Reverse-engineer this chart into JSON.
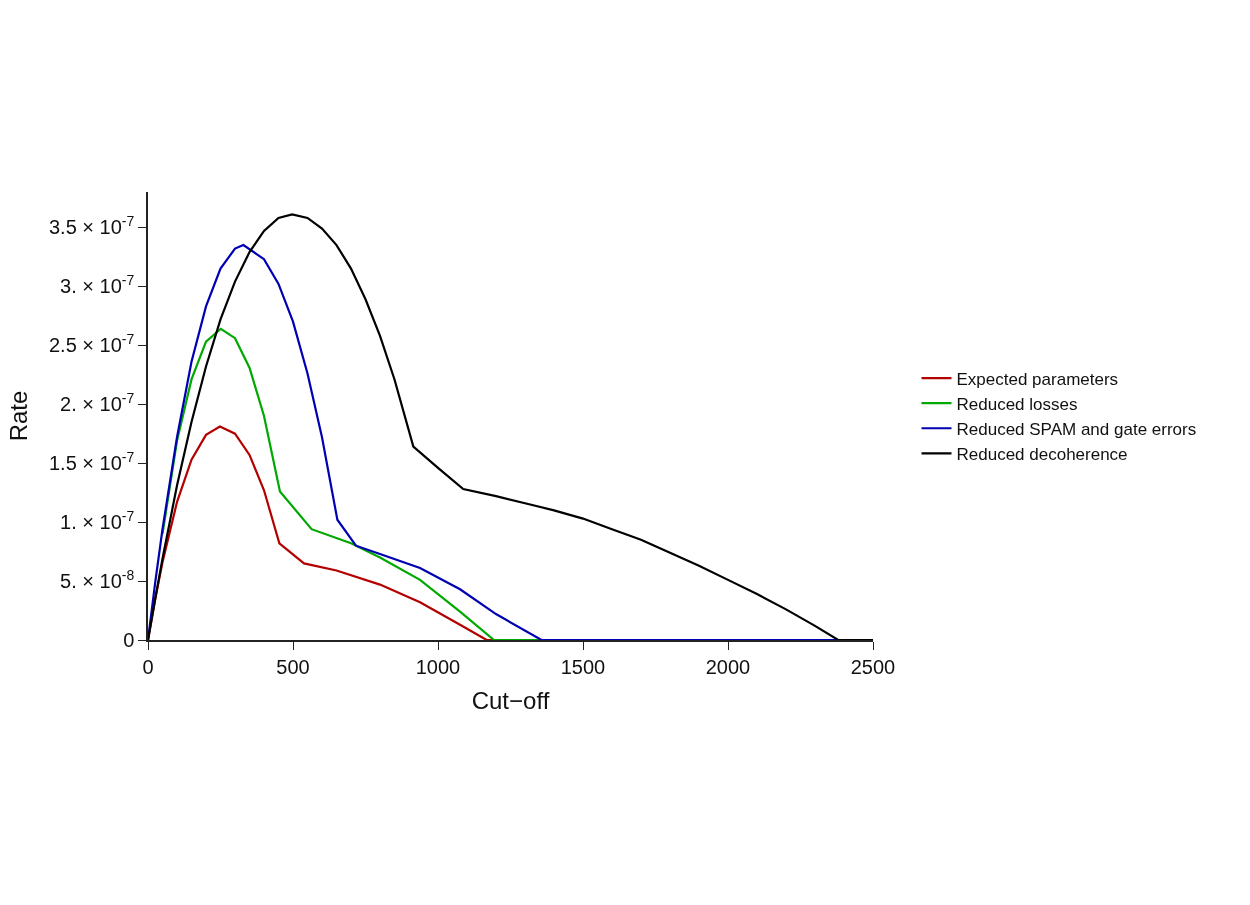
{
  "chart_data": {
    "type": "line",
    "xlabel": "Cut−off",
    "ylabel": "Rate",
    "xlim": [
      0,
      2500
    ],
    "ylim": [
      0,
      3.8e-07
    ],
    "xticks": [
      0,
      500,
      1000,
      1500,
      2000,
      2500
    ],
    "yticks": [
      0,
      {
        "value": 5e-08,
        "label": "5. × 10$^{-8}$"
      },
      {
        "value": 1e-07,
        "label": "1. × 10$^{-7}$"
      },
      {
        "value": 1.5e-07,
        "label": "1.5 × 10$^{-7}$"
      },
      {
        "value": 2e-07,
        "label": "2. × 10$^{-7}$"
      },
      {
        "value": 2.5e-07,
        "label": "2.5 × 10$^{-7}$"
      },
      {
        "value": 3e-07,
        "label": "3. × 10$^{-7}$"
      },
      {
        "value": 3.5e-07,
        "label": "3.5 × 10$^{-7}$"
      }
    ],
    "legend": "right",
    "marker": "none",
    "line_style": "solid",
    "series": [
      {
        "name": "Expected parameters",
        "color": "#b30000",
        "x": [
          0,
          25,
          50,
          100,
          150,
          200,
          248,
          300,
          350,
          400,
          453,
          538,
          650,
          800,
          938,
          1076,
          1168,
          2500
        ],
        "values": [
          0,
          3.5e-08,
          6.6e-08,
          1.17e-07,
          1.53e-07,
          1.74e-07,
          1.81e-07,
          1.75e-07,
          1.57e-07,
          1.27e-07,
          8.2e-08,
          6.5e-08,
          5.9e-08,
          4.7e-08,
          3.2e-08,
          1.3e-08,
          0,
          0
        ]
      },
      {
        "name": "Reduced losses",
        "color": "#00a800",
        "x": [
          50,
          100,
          150,
          200,
          251,
          300,
          350,
          400,
          455,
          564,
          700,
          800,
          938,
          1076,
          1193,
          2500
        ],
        "values": [
          9e-08,
          1.69e-07,
          2.21e-07,
          2.53e-07,
          2.64e-07,
          2.56e-07,
          2.31e-07,
          1.9e-07,
          1.26e-07,
          9.4e-08,
          8.2e-08,
          7e-08,
          5.1e-08,
          2.4e-08,
          0,
          0
        ]
      },
      {
        "name": "Reduced SPAM and gate errors",
        "color": "#0000b3",
        "x": [
          0,
          25,
          50,
          100,
          150,
          200,
          250,
          300,
          329,
          400,
          450,
          500,
          550,
          600,
          653,
          717,
          800,
          938,
          1076,
          1200,
          1357,
          2500
        ],
        "values": [
          0,
          4.9e-08,
          9.4e-08,
          1.72e-07,
          2.36e-07,
          2.83e-07,
          3.15e-07,
          3.32e-07,
          3.35e-07,
          3.23e-07,
          3.02e-07,
          2.7e-07,
          2.26e-07,
          1.72e-07,
          1.02e-07,
          8e-08,
          7.3e-08,
          6.1e-08,
          4.3e-08,
          2.2e-08,
          0,
          0
        ]
      },
      {
        "name": "Reduced decoherence",
        "color": "#000000",
        "x": [
          0,
          25,
          50,
          100,
          150,
          200,
          250,
          300,
          350,
          400,
          450,
          497,
          550,
          600,
          650,
          700,
          750,
          800,
          850,
          915,
          1000,
          1087,
          1200,
          1300,
          1400,
          1500,
          1600,
          1700,
          1800,
          1900,
          2000,
          2100,
          2200,
          2300,
          2380,
          2500
        ],
        "values": [
          0,
          3.5e-08,
          6.9e-08,
          1.31e-07,
          1.85e-07,
          2.32e-07,
          2.72e-07,
          3.04e-07,
          3.29e-07,
          3.47e-07,
          3.58e-07,
          3.61e-07,
          3.58e-07,
          3.49e-07,
          3.35e-07,
          3.15e-07,
          2.89e-07,
          2.58e-07,
          2.21e-07,
          1.64e-07,
          1.46e-07,
          1.28e-07,
          1.22e-07,
          1.16e-07,
          1.1e-07,
          1.03e-07,
          9.4e-08,
          8.5e-08,
          7.4e-08,
          6.3e-08,
          5.1e-08,
          3.9e-08,
          2.6e-08,
          1.2e-08,
          0,
          0
        ]
      }
    ]
  }
}
